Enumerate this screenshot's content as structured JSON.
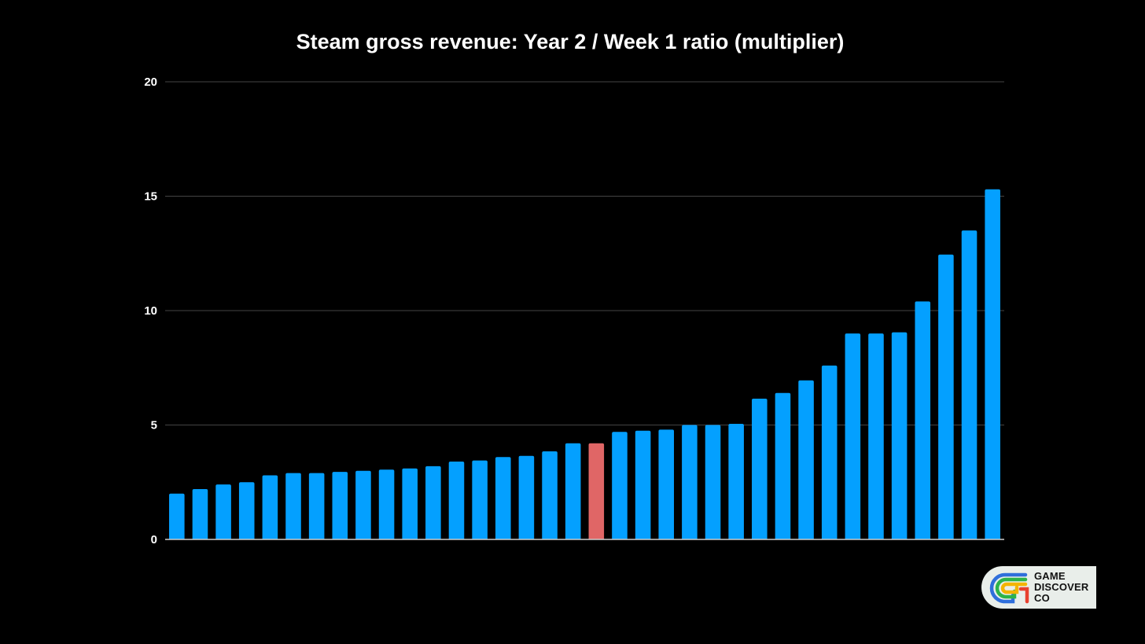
{
  "colors": {
    "background": "#000000",
    "bar": "#04a0ff",
    "highlight_bar": "#e06666",
    "gridline": "#444444",
    "baseline": "#cccccc",
    "text": "#ffffff"
  },
  "chart_data": {
    "type": "bar",
    "title": "Steam gross revenue: Year 2 / Week 1 ratio (multiplier)",
    "xlabel": "",
    "ylabel": "",
    "ylim": [
      0,
      20
    ],
    "yticks": [
      0,
      5,
      10,
      15,
      20
    ],
    "grid": true,
    "legend": "none",
    "values": [
      2.0,
      2.2,
      2.4,
      2.5,
      2.8,
      2.9,
      2.9,
      2.95,
      3.0,
      3.05,
      3.1,
      3.2,
      3.4,
      3.45,
      3.6,
      3.65,
      3.85,
      4.2,
      4.2,
      4.7,
      4.75,
      4.8,
      5.0,
      5.0,
      5.05,
      6.15,
      6.4,
      6.95,
      7.6,
      9.0,
      9.0,
      9.05,
      10.4,
      12.45,
      13.5,
      15.3
    ],
    "highlight_index": 18
  },
  "logo": {
    "name": "game-discover-co-logo",
    "lines": [
      "GAME",
      "DISCOVER",
      "CO"
    ]
  }
}
